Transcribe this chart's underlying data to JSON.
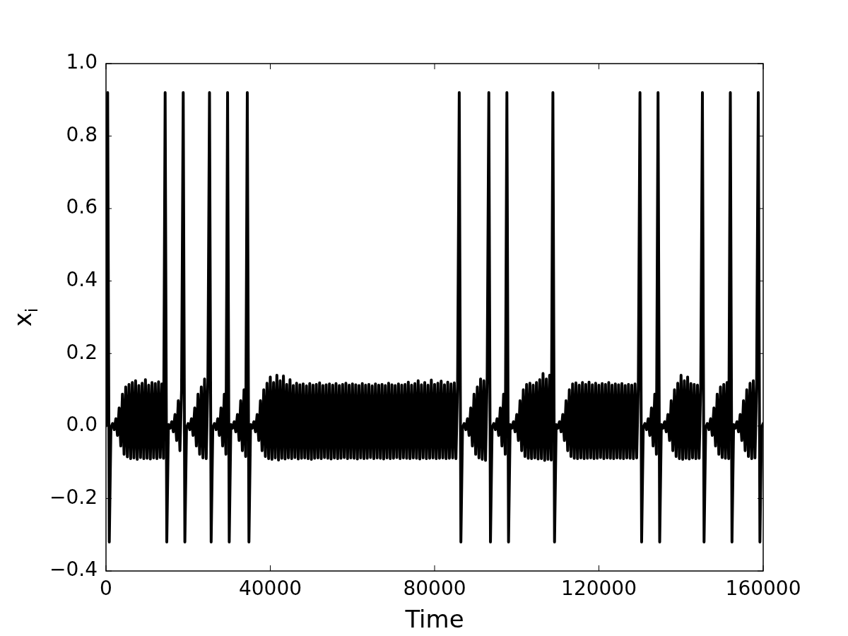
{
  "chart_data": {
    "type": "line",
    "xlabel": "Time",
    "ylabel": "x$_{i}$",
    "xlim": [
      0,
      160000
    ],
    "ylim": [
      -0.4,
      1.0
    ],
    "xticks": [
      0,
      40000,
      80000,
      120000,
      160000
    ],
    "yticks": [
      {
        "value": -0.4,
        "label": "−0.4"
      },
      {
        "value": -0.2,
        "label": "−0.2"
      },
      {
        "value": 0,
        "label": "0.0"
      },
      0.2,
      0.4,
      0.6,
      0.8,
      {
        "value": 1,
        "label": "1.0"
      }
    ],
    "x": [
      0,
      400,
      800,
      1200,
      1600,
      2000,
      2400,
      2800,
      3200,
      3600,
      4000,
      4400,
      4800,
      5200,
      5600,
      6000,
      6400,
      6800,
      7200,
      7600,
      8000,
      8400,
      8800,
      9200,
      9600,
      10000,
      10400,
      10800,
      11200,
      11600,
      12000,
      12400,
      12800,
      13200,
      13600,
      14000,
      14400,
      14800,
      15200,
      15600,
      16000,
      16400,
      16800,
      17200,
      17600,
      18000,
      18400,
      18800,
      19200,
      19600,
      20000,
      20400,
      20800,
      21200,
      21600,
      22000,
      22400,
      22800,
      23200,
      23600,
      24000,
      24400,
      24800,
      25200,
      25600,
      26000,
      26400,
      26800,
      27200,
      27600,
      28000,
      28400,
      28800,
      29200,
      29600,
      30000,
      30400,
      30800,
      31200,
      31600,
      32000,
      32400,
      32800,
      33200,
      33600,
      34000,
      34400,
      34800,
      35200,
      35600,
      36000,
      36400,
      36800,
      37200,
      37600,
      38000,
      38400,
      38800,
      39200,
      39600,
      40000,
      40400,
      40800,
      41200,
      41600,
      42000,
      42400,
      42800,
      43200,
      43600,
      44000,
      44400,
      44800,
      45200,
      45600,
      46000,
      46400,
      46800,
      47200,
      47600,
      48000,
      48400,
      48800,
      49200,
      49600,
      50000,
      50400,
      50800,
      51200,
      51600,
      52000,
      52400,
      52800,
      53200,
      53600,
      54000,
      54400,
      54800,
      55200,
      55600,
      56000,
      56400,
      56800,
      57200,
      57600,
      58000,
      58400,
      58800,
      59200,
      59600,
      60000,
      60400,
      60800,
      61200,
      61600,
      62000,
      62400,
      62800,
      63200,
      63600,
      64000,
      64400,
      64800,
      65200,
      65600,
      66000,
      66400,
      66800,
      67200,
      67600,
      68000,
      68400,
      68800,
      69200,
      69600,
      70000,
      70400,
      70800,
      71200,
      71600,
      72000,
      72400,
      72800,
      73200,
      73600,
      74000,
      74400,
      74800,
      75200,
      75600,
      76000,
      76400,
      76800,
      77200,
      77600,
      78000,
      78400,
      78800,
      79200,
      79600,
      80000,
      80400,
      80800,
      81200,
      81600,
      82000,
      82400,
      82800,
      83200,
      83600,
      84000,
      84400,
      84800,
      85200,
      85600,
      86000,
      86400,
      86800,
      87200,
      87600,
      88000,
      88400,
      88800,
      89200,
      89600,
      90000,
      90400,
      90800,
      91200,
      91600,
      92000,
      92400,
      92800,
      93200,
      93600,
      94000,
      94400,
      94800,
      95200,
      95600,
      96000,
      96400,
      96800,
      97200,
      97600,
      98000,
      98400,
      98800,
      99200,
      99600,
      100000,
      100400,
      100800,
      101200,
      101600,
      102000,
      102400,
      102800,
      103200,
      103600,
      104000,
      104400,
      104800,
      105200,
      105600,
      106000,
      106400,
      106800,
      107200,
      107600,
      108000,
      108400,
      108800,
      109200,
      109600,
      110000,
      110400,
      110800,
      111200,
      111600,
      112000,
      112400,
      112800,
      113200,
      113600,
      114000,
      114400,
      114800,
      115200,
      115600,
      116000,
      116400,
      116800,
      117200,
      117600,
      118000,
      118400,
      118800,
      119200,
      119600,
      120000,
      120400,
      120800,
      121200,
      121600,
      122000,
      122400,
      122800,
      123200,
      123600,
      124000,
      124400,
      124800,
      125200,
      125600,
      126000,
      126400,
      126800,
      127200,
      127600,
      128000,
      128400,
      128800,
      129200,
      129600,
      130000,
      130400,
      130800,
      131200,
      131600,
      132000,
      132400,
      132800,
      133200,
      133600,
      134000,
      134400,
      134800,
      135200,
      135600,
      136000,
      136400,
      136800,
      137200,
      137600,
      138000,
      138400,
      138800,
      139200,
      139600,
      140000,
      140400,
      140800,
      141200,
      141600,
      142000,
      142400,
      142800,
      143200,
      143600,
      144000,
      144400,
      144800,
      145200,
      145600,
      146000,
      146400,
      146800,
      147200,
      147600,
      148000,
      148400,
      148800,
      149200,
      149600,
      150000,
      150400,
      150800,
      151200,
      151600,
      152000,
      152400,
      152800,
      153200,
      153600,
      154000,
      154400,
      154800,
      155200,
      155600,
      156000,
      156400,
      156800,
      157200,
      157600,
      158000,
      158400,
      158800,
      159200,
      159600,
      160000
    ],
    "series": [
      {
        "color": "#000000",
        "values": [
          0,
          0.92,
          -0.32,
          -0.004,
          0.007,
          -0.01,
          0.02,
          -0.026,
          0.05,
          -0.055,
          0.088,
          -0.078,
          0.108,
          -0.085,
          0.115,
          -0.09,
          0.12,
          -0.088,
          0.125,
          -0.092,
          0.112,
          -0.087,
          0.118,
          -0.09,
          0.128,
          -0.089,
          0.113,
          -0.091,
          0.12,
          -0.088,
          0.117,
          -0.09,
          0.122,
          -0.087,
          0.116,
          -0.089,
          0.92,
          -0.32,
          0.004,
          -0.006,
          0.012,
          -0.016,
          0.032,
          -0.04,
          0.07,
          -0.068,
          0.1,
          0.92,
          -0.32,
          -0.004,
          0.007,
          -0.01,
          0.02,
          -0.026,
          0.05,
          -0.055,
          0.088,
          -0.078,
          0.108,
          -0.088,
          0.13,
          -0.09,
          0.122,
          0.92,
          -0.32,
          -0.004,
          0.007,
          -0.01,
          0.02,
          -0.026,
          0.05,
          -0.055,
          0.088,
          -0.078,
          0.92,
          -0.32,
          0.004,
          -0.006,
          0.012,
          -0.016,
          0.032,
          -0.04,
          0.07,
          -0.068,
          0.1,
          -0.084,
          0.92,
          -0.32,
          0.004,
          -0.006,
          0.012,
          -0.016,
          0.032,
          -0.04,
          0.07,
          -0.068,
          0.1,
          -0.084,
          0.118,
          -0.09,
          0.135,
          -0.092,
          0.12,
          -0.088,
          0.14,
          -0.094,
          0.125,
          -0.089,
          0.138,
          -0.091,
          0.115,
          -0.088,
          0.128,
          -0.09,
          0.112,
          -0.087,
          0.118,
          -0.091,
          0.114,
          -0.089,
          0.116,
          -0.088,
          0.111,
          -0.09,
          0.117,
          -0.092,
          0.113,
          -0.089,
          0.115,
          -0.088,
          0.119,
          -0.09,
          0.112,
          -0.087,
          0.114,
          -0.089,
          0.116,
          -0.091,
          0.113,
          -0.088,
          0.117,
          -0.09,
          0.112,
          -0.089,
          0.115,
          -0.087,
          0.118,
          -0.09,
          0.113,
          -0.088,
          0.116,
          -0.089,
          0.114,
          -0.091,
          0.112,
          -0.088,
          0.117,
          -0.09,
          0.113,
          -0.089,
          0.115,
          -0.087,
          0.111,
          -0.09,
          0.116,
          -0.088,
          0.113,
          -0.089,
          0.115,
          -0.091,
          0.112,
          -0.088,
          0.118,
          -0.09,
          0.114,
          -0.089,
          0.112,
          -0.087,
          0.116,
          -0.09,
          0.113,
          -0.088,
          0.115,
          -0.089,
          0.121,
          -0.09,
          0.113,
          -0.088,
          0.117,
          -0.089,
          0.125,
          -0.091,
          0.114,
          -0.088,
          0.12,
          -0.09,
          0.113,
          -0.089,
          0.127,
          -0.088,
          0.115,
          -0.09,
          0.118,
          -0.089,
          0.124,
          -0.088,
          0.114,
          -0.09,
          0.121,
          -0.089,
          0.116,
          -0.088,
          0.119,
          -0.09,
          0.115,
          0.92,
          -0.32,
          -0.004,
          0.007,
          -0.01,
          0.02,
          -0.026,
          0.05,
          -0.055,
          0.088,
          -0.078,
          0.108,
          -0.088,
          0.13,
          -0.092,
          0.125,
          -0.095,
          0.135,
          0.92,
          -0.32,
          -0.004,
          0.007,
          -0.01,
          0.02,
          -0.026,
          0.05,
          -0.055,
          0.088,
          -0.078,
          0.92,
          -0.32,
          0.004,
          -0.006,
          0.012,
          -0.016,
          0.032,
          -0.04,
          0.07,
          -0.068,
          0.1,
          -0.084,
          0.115,
          -0.089,
          0.118,
          -0.09,
          0.113,
          -0.088,
          0.12,
          -0.091,
          0.128,
          -0.09,
          0.145,
          -0.095,
          0.13,
          -0.092,
          0.14,
          -0.094,
          0.92,
          -0.32,
          0.004,
          -0.006,
          0.012,
          -0.016,
          0.032,
          -0.04,
          0.07,
          -0.068,
          0.1,
          -0.084,
          0.116,
          -0.089,
          0.119,
          -0.09,
          0.113,
          -0.088,
          0.12,
          -0.09,
          0.115,
          -0.089,
          0.121,
          -0.088,
          0.114,
          -0.09,
          0.118,
          -0.089,
          0.113,
          -0.087,
          0.117,
          -0.09,
          0.115,
          -0.088,
          0.12,
          -0.089,
          0.113,
          -0.09,
          0.116,
          -0.088,
          0.114,
          -0.089,
          0.117,
          -0.09,
          0.112,
          -0.088,
          0.115,
          -0.089,
          0.113,
          -0.09,
          0.116,
          -0.088,
          0.114,
          0.92,
          -0.32,
          -0.004,
          0.007,
          -0.01,
          0.02,
          -0.026,
          0.05,
          -0.055,
          0.088,
          -0.078,
          0.92,
          -0.32,
          0.004,
          -0.006,
          0.012,
          -0.016,
          0.032,
          -0.04,
          0.07,
          -0.068,
          0.1,
          -0.084,
          0.118,
          -0.09,
          0.14,
          -0.092,
          0.125,
          -0.089,
          0.135,
          -0.091,
          0.117,
          -0.088,
          0.115,
          -0.09,
          0.113,
          -0.089,
          0.116,
          0.92,
          -0.32,
          -0.004,
          0.007,
          -0.01,
          0.02,
          -0.026,
          0.05,
          -0.055,
          0.088,
          -0.078,
          0.108,
          -0.087,
          0.115,
          -0.089,
          0.12,
          -0.09,
          0.92,
          -0.32,
          0.004,
          -0.006,
          0.012,
          -0.016,
          0.032,
          -0.04,
          0.07,
          -0.068,
          0.1,
          -0.084,
          0.118,
          -0.09,
          0.125,
          -0.088,
          0.116,
          0.92,
          -0.32,
          -0.004,
          0.007
        ]
      }
    ]
  }
}
